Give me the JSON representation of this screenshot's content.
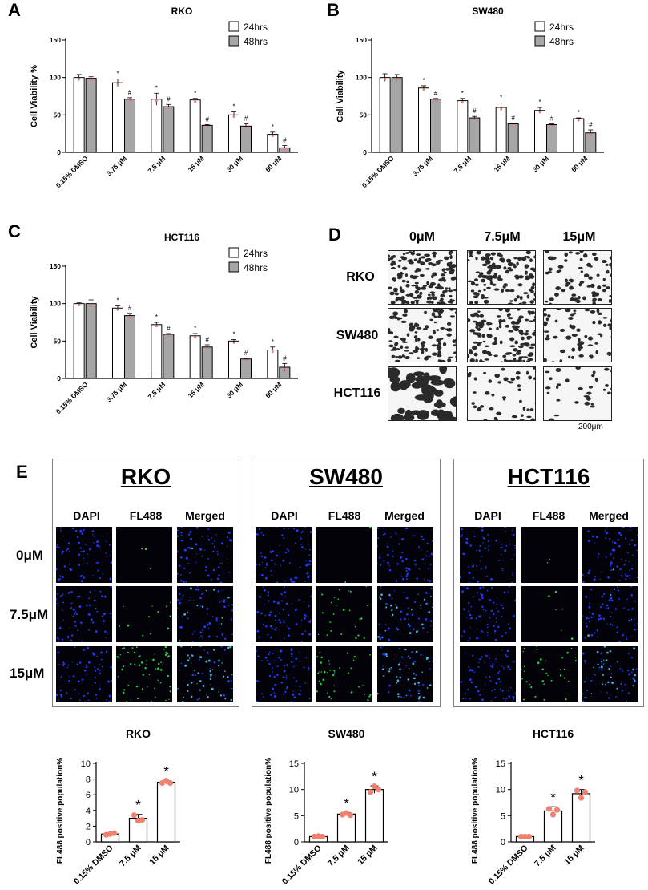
{
  "panel_labels": {
    "a": "A",
    "b": "B",
    "c": "C",
    "d": "D",
    "e": "E"
  },
  "chart_data": [
    {
      "id": "A",
      "type": "bar",
      "title": "RKO",
      "ylabel": "Cell Viability %",
      "xlabel": "",
      "ylim": [
        0,
        150
      ],
      "yticks": [
        0,
        50,
        100,
        150
      ],
      "categories": [
        "0.15% DMSO",
        "3.75 μM",
        "7.5 μM",
        "15 μM",
        "30 μM",
        "60 μM"
      ],
      "series": [
        {
          "name": "24hrs",
          "color": "#ffffff",
          "values": [
            100,
            93,
            71,
            70,
            50,
            24
          ],
          "errors": [
            4,
            5,
            8,
            2,
            4,
            3
          ],
          "marks": [
            "",
            "*",
            "*",
            "*",
            "*",
            "*"
          ]
        },
        {
          "name": "48hrs",
          "color": "#a6a6a6",
          "values": [
            99,
            71,
            61,
            36,
            35,
            6
          ],
          "errors": [
            2,
            2,
            3,
            1,
            3,
            3
          ],
          "marks": [
            "",
            "#",
            "#",
            "#",
            "#",
            "#"
          ]
        }
      ]
    },
    {
      "id": "B",
      "type": "bar",
      "title": "SW480",
      "ylabel": "Cell Viability",
      "xlabel": "",
      "ylim": [
        0,
        150
      ],
      "yticks": [
        0,
        50,
        100,
        150
      ],
      "categories": [
        "0.15% DMSO",
        "3.75 μM",
        "7.5 μM",
        "15 μM",
        "30 μM",
        "60 μM"
      ],
      "series": [
        {
          "name": "24hrs",
          "color": "#ffffff",
          "values": [
            100,
            86,
            69,
            60,
            56,
            45
          ],
          "errors": [
            5,
            3,
            3,
            6,
            4,
            1
          ],
          "marks": [
            "",
            "*",
            "*",
            "*",
            "*",
            "*"
          ]
        },
        {
          "name": "48hrs",
          "color": "#a6a6a6",
          "values": [
            100,
            71,
            46,
            38,
            37,
            26
          ],
          "errors": [
            4,
            1,
            2,
            1,
            1,
            4
          ],
          "marks": [
            "",
            "#",
            "#",
            "#",
            "#",
            "#"
          ]
        }
      ]
    },
    {
      "id": "C",
      "type": "bar",
      "title": "HCT116",
      "ylabel": "Cell Viability",
      "xlabel": "",
      "ylim": [
        0,
        150
      ],
      "yticks": [
        0,
        50,
        100,
        150
      ],
      "categories": [
        "0.15% DMSO",
        "3.75 μM",
        "7.5 μM",
        "15 μM",
        "30 μM",
        "60 μM"
      ],
      "series": [
        {
          "name": "24hrs",
          "color": "#ffffff",
          "values": [
            100,
            94,
            72,
            57,
            50,
            38
          ],
          "errors": [
            1,
            3,
            3,
            3,
            2,
            4
          ],
          "marks": [
            "",
            "*",
            "*",
            "*",
            "*",
            "*"
          ]
        },
        {
          "name": "48hrs",
          "color": "#a6a6a6",
          "values": [
            100,
            84,
            59,
            42,
            26,
            15
          ],
          "errors": [
            5,
            3,
            1,
            3,
            1,
            5
          ],
          "marks": [
            "",
            "#",
            "#",
            "#",
            "#",
            "#"
          ]
        }
      ]
    },
    {
      "id": "E-RKO",
      "type": "bar",
      "title": "RKO",
      "ylabel": "FL488 positive population%",
      "xlabel": "",
      "ylim": [
        0,
        10
      ],
      "yticks": [
        0,
        2,
        4,
        6,
        8,
        10
      ],
      "categories": [
        "0.15% DMSO",
        "7.5 μM",
        "15 μM"
      ],
      "series": [
        {
          "name": "",
          "color": "#ffffff",
          "values": [
            1.0,
            3.0,
            7.6
          ],
          "errors": [
            0.15,
            0.5,
            0.2
          ],
          "marks": [
            "",
            "*",
            "*"
          ],
          "points": [
            [
              0.9,
              1.0,
              1.1
            ],
            [
              3.4,
              2.7,
              2.8
            ],
            [
              7.5,
              7.8,
              7.5
            ]
          ]
        }
      ]
    },
    {
      "id": "E-SW480",
      "type": "bar",
      "title": "SW480",
      "ylabel": "FL488 positive population%",
      "xlabel": "",
      "ylim": [
        0,
        15
      ],
      "yticks": [
        0,
        5,
        10,
        15
      ],
      "categories": [
        "0.15% DMSO",
        "7.5 μM",
        "15 μM"
      ],
      "series": [
        {
          "name": "",
          "color": "#ffffff",
          "values": [
            1.0,
            5.3,
            10.0
          ],
          "errors": [
            0.1,
            0.3,
            0.7
          ],
          "marks": [
            "",
            "*",
            "*"
          ],
          "points": [
            [
              1.0,
              1.1,
              1.0
            ],
            [
              5.2,
              5.5,
              5.1
            ],
            [
              9.5,
              10.6,
              10.0
            ]
          ]
        }
      ]
    },
    {
      "id": "E-HCT116",
      "type": "bar",
      "title": "HCT116",
      "ylabel": "FL488 positive population%",
      "xlabel": "",
      "ylim": [
        0,
        15
      ],
      "yticks": [
        0,
        5,
        10,
        15
      ],
      "categories": [
        "0.15% DMSO",
        "7.5 μM",
        "15 μM"
      ],
      "series": [
        {
          "name": "",
          "color": "#ffffff",
          "values": [
            1.0,
            5.9,
            9.2
          ],
          "errors": [
            0.1,
            0.8,
            0.8
          ],
          "marks": [
            "",
            "*",
            "*"
          ],
          "points": [
            [
              1.0,
              1.0,
              1.0
            ],
            [
              6.3,
              5.2,
              6.1
            ],
            [
              9.8,
              8.4,
              9.5
            ]
          ]
        }
      ]
    }
  ],
  "panel_d": {
    "columns": [
      "0μM",
      "7.5μM",
      "15μM"
    ],
    "rows": [
      "RKO",
      "SW480",
      "HCT116"
    ],
    "scale_bar": "200μm"
  },
  "panel_e": {
    "boxes": [
      {
        "title": "RKO",
        "columns": [
          "DAPI",
          "FL488",
          "Merged"
        ]
      },
      {
        "title": "SW480",
        "columns": [
          "DAPI",
          "FL488",
          "Merged"
        ]
      },
      {
        "title": "HCT116",
        "columns": [
          "DAPI",
          "FL488",
          "Merged"
        ]
      }
    ],
    "rows": [
      "0μM",
      "7.5μM",
      "15μM"
    ]
  },
  "colors": {
    "point": "#f08070",
    "bar_gray": "#a6a6a6",
    "dapi": "#1e3cff",
    "fl488": "#28d23c"
  }
}
